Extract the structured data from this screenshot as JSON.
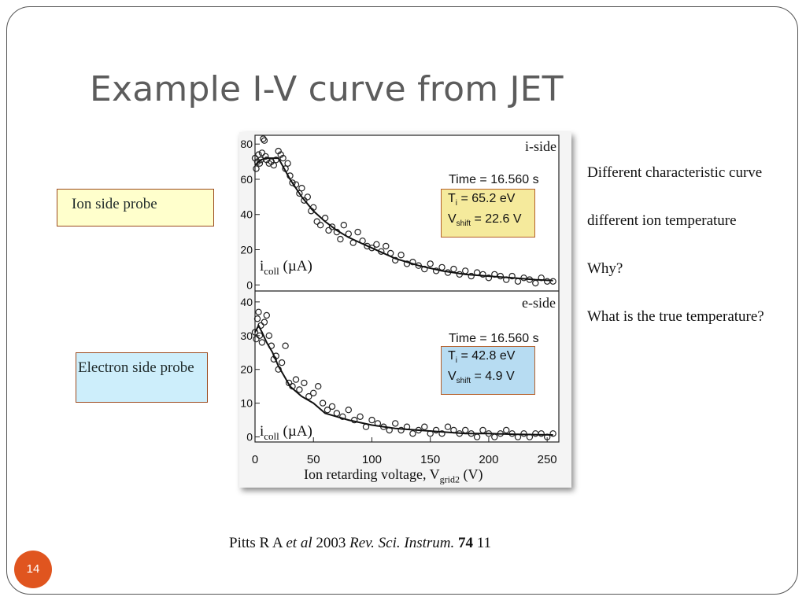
{
  "slide": {
    "title": "Example I-V curve from JET",
    "page_number": "14",
    "ion_label": "Ion side probe",
    "electron_label": "Electron side probe",
    "notes": [
      "Different characteristic curve",
      "different  ion temperature",
      "Why?",
      "What is the true temperature?"
    ],
    "citation": {
      "author": "Pitts R A ",
      "etal": "et al",
      "year": " 2003 ",
      "journal": "Rev. Sci. Instrum.",
      "volume": "74",
      "page": " 11"
    }
  },
  "colors": {
    "ion_box": "#ffffcc",
    "electron_box": "#cdeefb",
    "box_border": "#9b4a1e",
    "page_badge": "#e0551f",
    "title": "#5c5c5c"
  },
  "chart_data": [
    {
      "type": "scatter",
      "panel_label": "i-side",
      "info": {
        "time": "Time = 16.560 s",
        "ti_label": "T",
        "ti_sub": "i",
        "ti_value": " = 65.2 eV",
        "vshift_label": "V",
        "vshift_sub": "shift",
        "vshift_value": " = 22.6 V"
      },
      "ylabel_main": "i",
      "ylabel_sub": "coll",
      "ylabel_unit": " (µA)",
      "xlim": [
        0,
        260
      ],
      "ylim": [
        -3,
        85
      ],
      "yticks": [
        0,
        20,
        40,
        60,
        80
      ],
      "fit": {
        "x": [
          0,
          5,
          10,
          15,
          20,
          25,
          30,
          40,
          50,
          60,
          70,
          80,
          90,
          100,
          120,
          140,
          160,
          180,
          200,
          220,
          240,
          255
        ],
        "y": [
          68,
          71,
          72,
          72,
          72,
          66,
          60,
          50,
          42,
          36,
          31,
          27,
          24,
          21,
          15,
          11,
          8,
          6,
          5,
          4,
          3,
          2.5
        ]
      },
      "points": {
        "x": [
          0,
          1,
          2,
          3,
          4,
          5,
          6,
          7,
          8,
          9,
          10,
          12,
          14,
          16,
          18,
          20,
          22,
          24,
          26,
          28,
          30,
          32,
          35,
          38,
          40,
          42,
          45,
          48,
          50,
          53,
          56,
          60,
          63,
          66,
          70,
          73,
          76,
          80,
          84,
          88,
          92,
          96,
          100,
          104,
          108,
          112,
          116,
          120,
          125,
          130,
          135,
          140,
          145,
          150,
          155,
          160,
          165,
          170,
          175,
          180,
          185,
          190,
          195,
          200,
          205,
          210,
          215,
          220,
          225,
          230,
          235,
          240,
          245,
          250,
          255
        ],
        "y": [
          72,
          66,
          70,
          74,
          69,
          71,
          75,
          83,
          82,
          73,
          71,
          69,
          70,
          68,
          71,
          76,
          74,
          72,
          66,
          69,
          62,
          58,
          57,
          52,
          55,
          48,
          50,
          42,
          44,
          36,
          34,
          38,
          31,
          33,
          30,
          26,
          34,
          29,
          24,
          30,
          25,
          22,
          21,
          23,
          19,
          22,
          18,
          14,
          17,
          12,
          13,
          11,
          9,
          12,
          8,
          10,
          7,
          9,
          6,
          8,
          5,
          7,
          6,
          4,
          6,
          5,
          3,
          5,
          2,
          4,
          3,
          1,
          4,
          2,
          2
        ]
      }
    },
    {
      "type": "scatter",
      "panel_label": "e-side",
      "info": {
        "time": "Time = 16.560 s",
        "ti_label": "T",
        "ti_sub": "i",
        "ti_value": " = 42.8 eV",
        "vshift_label": "V",
        "vshift_sub": "shift",
        "vshift_value": " =  4.9 V"
      },
      "ylabel_main": "i",
      "ylabel_sub": "coll",
      "ylabel_unit": " (µA)",
      "xlim": [
        0,
        260
      ],
      "ylim": [
        -1.5,
        43
      ],
      "yticks": [
        0,
        10,
        20,
        30,
        40
      ],
      "xticks": [
        0,
        50,
        100,
        150,
        200,
        250
      ],
      "xlabel_main": "Ion retarding voltage, V",
      "xlabel_sub": "grid2",
      "xlabel_unit": " (V)",
      "fit": {
        "x": [
          0,
          3,
          6,
          10,
          15,
          20,
          25,
          30,
          40,
          50,
          60,
          70,
          80,
          100,
          120,
          140,
          160,
          180,
          200,
          220,
          240,
          255
        ],
        "y": [
          31,
          33,
          31,
          28,
          25,
          21,
          18,
          15,
          12,
          10,
          7,
          6,
          5,
          3.5,
          2.5,
          2,
          1.5,
          1,
          1,
          0.8,
          0.7,
          0.6
        ]
      },
      "points": {
        "x": [
          0,
          1,
          2,
          3,
          4,
          5,
          6,
          8,
          10,
          12,
          14,
          16,
          18,
          20,
          23,
          26,
          29,
          32,
          35,
          38,
          42,
          46,
          50,
          54,
          58,
          62,
          66,
          70,
          75,
          80,
          85,
          90,
          95,
          100,
          105,
          110,
          115,
          120,
          125,
          130,
          135,
          140,
          145,
          150,
          155,
          160,
          165,
          170,
          175,
          180,
          185,
          190,
          195,
          200,
          205,
          210,
          215,
          220,
          225,
          230,
          235,
          240,
          245,
          250,
          255
        ],
        "y": [
          31,
          29,
          35,
          37,
          30,
          33,
          28,
          34,
          36,
          30,
          27,
          23,
          24,
          20,
          22,
          27,
          16,
          15,
          17,
          14,
          16,
          12,
          13,
          15,
          10,
          8,
          9,
          7,
          6,
          8,
          5,
          6,
          3,
          5,
          4,
          3,
          2,
          4,
          2,
          3,
          1,
          2,
          3,
          1,
          2,
          1,
          3,
          2,
          1,
          2,
          1,
          0,
          2,
          1,
          0,
          1,
          2,
          1,
          0,
          1,
          0,
          1,
          1,
          0,
          1
        ]
      }
    }
  ]
}
